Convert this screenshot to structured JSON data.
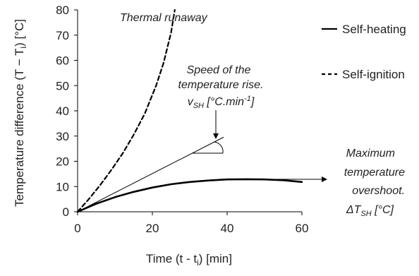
{
  "chart_data": {
    "type": "line",
    "xlabel": "Time (t -  t",
    "xlabel_sub": "i",
    "xlabel_tail": ") [min]",
    "ylabel": "Temperature difference (T − T",
    "ylabel_sub": "i",
    "ylabel_tail": ") [°C]",
    "xlim": [
      0,
      60
    ],
    "ylim": [
      0,
      80
    ],
    "x_ticks": [
      0,
      20,
      40,
      60
    ],
    "y_ticks": [
      0,
      10,
      20,
      30,
      40,
      50,
      60,
      70,
      80
    ],
    "grid": false,
    "legend_position": "right",
    "series": [
      {
        "name": "Self-heating",
        "style": "solid",
        "color": "#000000",
        "x": [
          0,
          5,
          10,
          15,
          20,
          25,
          30,
          35,
          40,
          45,
          50,
          55,
          60
        ],
        "y": [
          0,
          3.2,
          5.8,
          7.9,
          9.6,
          10.9,
          11.8,
          12.4,
          12.8,
          12.9,
          12.8,
          12.5,
          11.8
        ]
      },
      {
        "name": "Self-ignition",
        "style": "dashed",
        "color": "#000000",
        "x": [
          0,
          3,
          6,
          9,
          12,
          15,
          18,
          21,
          23,
          25,
          26
        ],
        "y": [
          0,
          5,
          10.5,
          16.5,
          23,
          30.5,
          39,
          50,
          59,
          71,
          80
        ]
      },
      {
        "style": "thin",
        "color": "#000000",
        "x": [
          0,
          39
        ],
        "y": [
          0,
          29.5
        ]
      }
    ],
    "annotations": {
      "runaway": "Thermal runaway",
      "speed_line1": "Speed of the",
      "speed_line2": "temperature rise.",
      "speed_line3_prefix": "v",
      "speed_line3_sub": "SH",
      "speed_line3_mid": " [°C.min",
      "speed_line3_sup": "-1",
      "speed_line3_tail": "]",
      "overshoot_line1": "Maximum",
      "overshoot_line2": "temperature",
      "overshoot_line3": "overshoot.",
      "overshoot_line4_prefix": "ΔT",
      "overshoot_line4_sub": "SH",
      "overshoot_line4_tail": " [°C]"
    }
  }
}
